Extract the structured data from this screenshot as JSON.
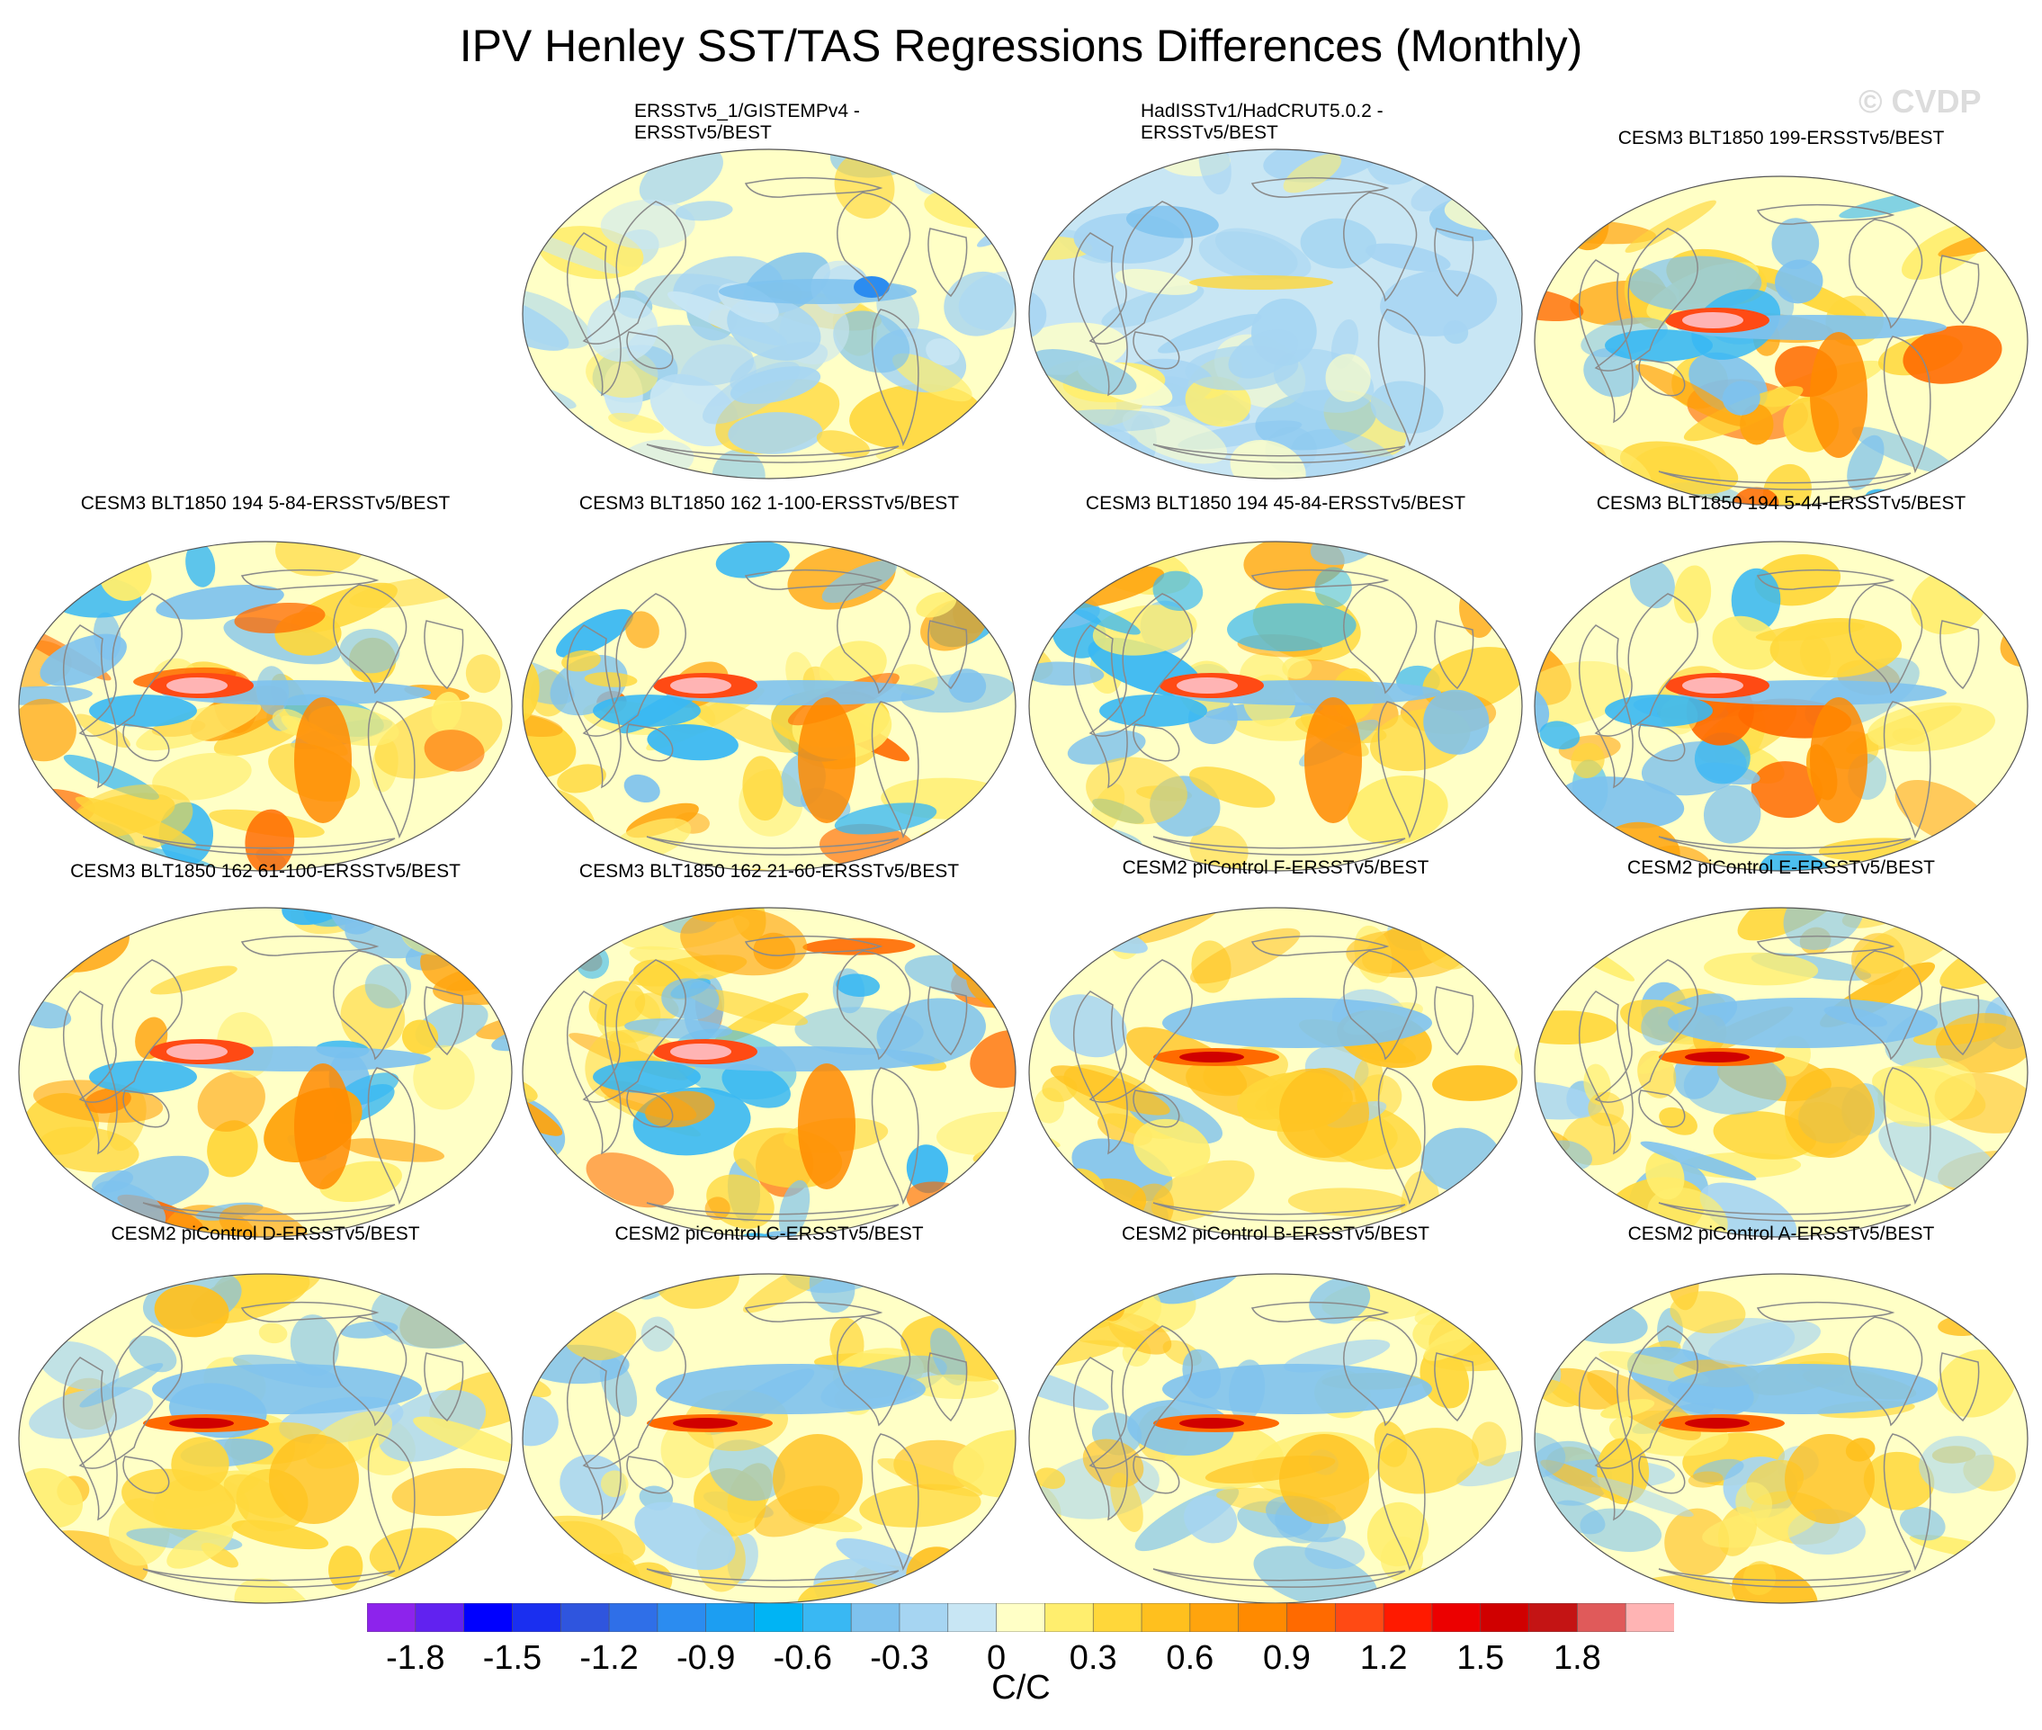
{
  "title": "IPV Henley SST/TAS Regressions Differences (Monthly)",
  "watermark": "© CVDP",
  "panels": [
    {
      "title": "ERSSTv5_1/GISTEMPv4 -\nERSSTv5/BEST",
      "style": "mixed-cool"
    },
    {
      "title": "HadISSTv1/HadCRUT5.0.2 -\nERSSTv5/BEST",
      "style": "cool-flat"
    },
    {
      "title": "CESM3 BLT1850 199-ERSSTv5/BEST",
      "style": "warm-tongue"
    },
    {
      "title": "CESM3 BLT1850 194 5-84-ERSSTv5/BEST",
      "style": "warm-tongue"
    },
    {
      "title": "CESM3 BLT1850 162 1-100-ERSSTv5/BEST",
      "style": "warm-tongue"
    },
    {
      "title": "CESM3 BLT1850 194 45-84-ERSSTv5/BEST",
      "style": "warm-tongue"
    },
    {
      "title": "CESM3 BLT1850 194 5-44-ERSSTv5/BEST",
      "style": "warm-tongue"
    },
    {
      "title": "CESM3 BLT1850 162 61-100-ERSSTv5/BEST",
      "style": "warm-tongue"
    },
    {
      "title": "CESM3 BLT1850 162 21-60-ERSSTv5/BEST",
      "style": "warm-tongue"
    },
    {
      "title": "CESM2 piControl F-ERSSTv5/BEST",
      "style": "cesm2"
    },
    {
      "title": "CESM2 piControl E-ERSSTv5/BEST",
      "style": "cesm2"
    },
    {
      "title": "CESM2 piControl D-ERSSTv5/BEST",
      "style": "cesm2"
    },
    {
      "title": "CESM2 piControl C-ERSSTv5/BEST",
      "style": "cesm2"
    },
    {
      "title": "CESM2 piControl B-ERSSTv5/BEST",
      "style": "cesm2"
    },
    {
      "title": "CESM2 piControl A-ERSSTv5/BEST",
      "style": "cesm2"
    }
  ],
  "colorbar": {
    "units": "C/C",
    "labels": [
      "-1.8",
      "-1.5",
      "-1.2",
      "-0.9",
      "-0.6",
      "-0.3",
      "0",
      "0.3",
      "0.6",
      "0.9",
      "1.2",
      "1.5",
      "1.8"
    ],
    "colors": [
      "#8d23ec",
      "#6122f0",
      "#0000ff",
      "#1a2ff0",
      "#2f55de",
      "#2f6fe8",
      "#2b8cf0",
      "#1c9ef2",
      "#00b4f4",
      "#39b8f3",
      "#7ec2ee",
      "#a6d5f2",
      "#c8e6f4",
      "#ffffc6",
      "#ffee6e",
      "#ffd73a",
      "#ffc01e",
      "#ffa40d",
      "#ff8a00",
      "#ff6a00",
      "#ff4a14",
      "#ff1a00",
      "#ec0000",
      "#d00000",
      "#c41414",
      "#e05a5a",
      "#ffb4b4"
    ]
  }
}
